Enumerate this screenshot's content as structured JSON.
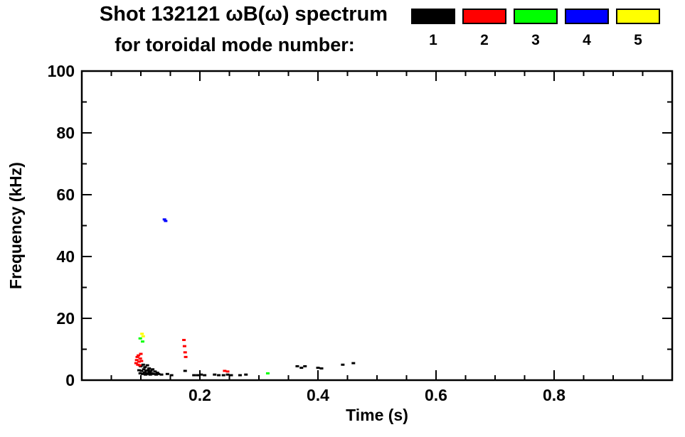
{
  "title_line1": "Shot 132121 ωB(ω) spectrum",
  "title_line2": "for toroidal mode number:",
  "legend": {
    "modes": [
      {
        "label": "1",
        "color": "#000000"
      },
      {
        "label": "2",
        "color": "#ff0000"
      },
      {
        "label": "3",
        "color": "#00ff00"
      },
      {
        "label": "4",
        "color": "#0000ff"
      },
      {
        "label": "5",
        "color": "#ffff00"
      }
    ]
  },
  "chart_data": {
    "type": "scatter",
    "title": "Shot 132121 ωB(ω) spectrum for toroidal mode number: 1 2 3 4 5",
    "xlabel": "Time (s)",
    "ylabel": "Frequency (kHz)",
    "xlim": [
      0,
      1.0
    ],
    "ylim": [
      0,
      100
    ],
    "xticks": [
      0.2,
      0.4,
      0.6,
      0.8
    ],
    "xtick_labels": [
      "0.2",
      "0.4",
      "0.6",
      "0.8"
    ],
    "yticks": [
      0,
      20,
      40,
      60,
      80,
      100
    ],
    "ytick_labels": [
      "0",
      "20",
      "40",
      "60",
      "80",
      "100"
    ],
    "x_minor_step": 0.05,
    "y_minor_step": 10,
    "grid": false,
    "legend_position": "top-right",
    "series": [
      {
        "name": "mode 1",
        "color": "#000000",
        "points": [
          [
            0.097,
            3.2
          ],
          [
            0.099,
            2.2
          ],
          [
            0.1,
            4.5
          ],
          [
            0.101,
            3.0
          ],
          [
            0.103,
            2.0
          ],
          [
            0.104,
            5.0
          ],
          [
            0.105,
            3.5
          ],
          [
            0.106,
            2.5
          ],
          [
            0.107,
            4.2
          ],
          [
            0.108,
            1.8
          ],
          [
            0.109,
            3.0
          ],
          [
            0.11,
            2.2
          ],
          [
            0.111,
            4.8
          ],
          [
            0.112,
            3.2
          ],
          [
            0.113,
            2.0
          ],
          [
            0.114,
            3.8
          ],
          [
            0.115,
            2.6
          ],
          [
            0.116,
            1.8
          ],
          [
            0.117,
            3.0
          ],
          [
            0.118,
            2.2
          ],
          [
            0.12,
            3.5
          ],
          [
            0.122,
            2.0
          ],
          [
            0.124,
            2.8
          ],
          [
            0.126,
            1.8
          ],
          [
            0.128,
            2.4
          ],
          [
            0.13,
            2.0
          ],
          [
            0.135,
            1.8
          ],
          [
            0.145,
            2.0
          ],
          [
            0.152,
            1.6
          ],
          [
            0.175,
            3.0
          ],
          [
            0.19,
            1.6
          ],
          [
            0.196,
            1.6
          ],
          [
            0.202,
            1.8
          ],
          [
            0.208,
            1.6
          ],
          [
            0.225,
            1.8
          ],
          [
            0.232,
            1.6
          ],
          [
            0.24,
            1.6
          ],
          [
            0.247,
            1.8
          ],
          [
            0.253,
            1.6
          ],
          [
            0.268,
            1.6
          ],
          [
            0.278,
            1.8
          ],
          [
            0.365,
            4.5
          ],
          [
            0.372,
            4.0
          ],
          [
            0.378,
            4.5
          ],
          [
            0.4,
            4.0
          ],
          [
            0.406,
            3.8
          ],
          [
            0.442,
            5.0
          ],
          [
            0.46,
            5.5
          ]
        ]
      },
      {
        "name": "mode 2",
        "color": "#ff0000",
        "points": [
          [
            0.092,
            5.5
          ],
          [
            0.093,
            6.5
          ],
          [
            0.094,
            7.5
          ],
          [
            0.095,
            5.0
          ],
          [
            0.096,
            8.0
          ],
          [
            0.097,
            6.0
          ],
          [
            0.098,
            4.8
          ],
          [
            0.099,
            7.0
          ],
          [
            0.1,
            8.5
          ],
          [
            0.101,
            6.2
          ],
          [
            0.173,
            13.0
          ],
          [
            0.174,
            11.0
          ],
          [
            0.175,
            9.0
          ],
          [
            0.176,
            7.5
          ],
          [
            0.242,
            3.0
          ],
          [
            0.247,
            2.8
          ]
        ]
      },
      {
        "name": "mode 3",
        "color": "#00ff00",
        "points": [
          [
            0.099,
            13.5
          ],
          [
            0.103,
            12.5
          ],
          [
            0.315,
            2.2
          ]
        ]
      },
      {
        "name": "mode 4",
        "color": "#0000ff",
        "points": [
          [
            0.14,
            52.0
          ],
          [
            0.142,
            51.5
          ]
        ]
      },
      {
        "name": "mode 5",
        "color": "#ffff00",
        "points": [
          [
            0.102,
            15.0
          ],
          [
            0.104,
            14.2
          ]
        ]
      }
    ]
  }
}
